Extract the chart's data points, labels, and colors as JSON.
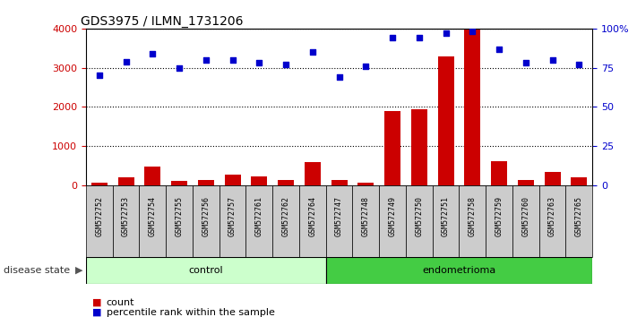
{
  "title": "GDS3975 / ILMN_1731206",
  "samples": [
    "GSM572752",
    "GSM572753",
    "GSM572754",
    "GSM572755",
    "GSM572756",
    "GSM572757",
    "GSM572761",
    "GSM572762",
    "GSM572764",
    "GSM572747",
    "GSM572748",
    "GSM572749",
    "GSM572750",
    "GSM572751",
    "GSM572758",
    "GSM572759",
    "GSM572760",
    "GSM572763",
    "GSM572765"
  ],
  "counts": [
    60,
    200,
    480,
    110,
    130,
    270,
    230,
    130,
    590,
    150,
    60,
    1900,
    1940,
    3280,
    3980,
    620,
    140,
    340,
    200
  ],
  "percentiles": [
    70,
    79,
    84,
    75,
    80,
    80,
    78,
    77,
    85,
    69,
    76,
    94,
    94,
    97,
    98,
    87,
    78,
    80,
    77
  ],
  "control_count": 9,
  "endometrioma_count": 10,
  "bar_color": "#cc0000",
  "dot_color": "#0000cc",
  "left_axis_color": "#cc0000",
  "right_axis_color": "#0000cc",
  "ylim_left": [
    0,
    4000
  ],
  "ylim_right": [
    0,
    100
  ],
  "yticks_left": [
    0,
    1000,
    2000,
    3000,
    4000
  ],
  "yticks_right": [
    0,
    25,
    50,
    75,
    100
  ],
  "ytick_labels_right": [
    "0",
    "25",
    "50",
    "75",
    "100%"
  ],
  "control_color": "#ccffcc",
  "endometrioma_color": "#44cc44",
  "sample_bg_color": "#cccccc",
  "legend_count_label": "count",
  "legend_pct_label": "percentile rank within the sample",
  "disease_state_label": "disease state",
  "control_label": "control",
  "endometrioma_label": "endometrioma"
}
